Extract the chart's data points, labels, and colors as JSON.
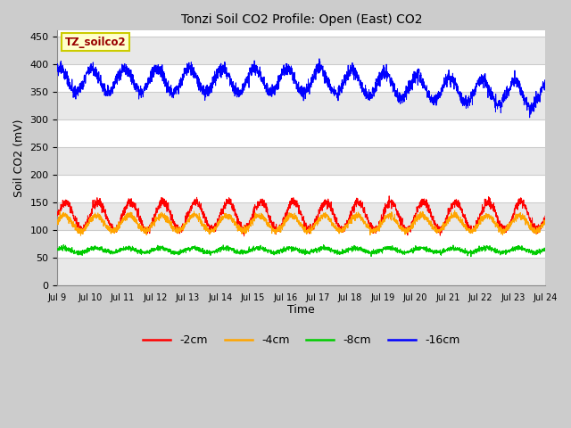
{
  "title": "Tonzi Soil CO2 Profile: Open (East) CO2",
  "ylabel": "Soil CO2 (mV)",
  "xlabel": "Time",
  "annotation_text": "TZ_soilco2",
  "annotation_color": "#990000",
  "annotation_bg": "#ffffcc",
  "annotation_border": "#cccc00",
  "ylim": [
    0,
    460
  ],
  "yticks": [
    0,
    50,
    100,
    150,
    200,
    250,
    300,
    350,
    400,
    450
  ],
  "xtick_labels": [
    "Jul 9",
    "Jul 10",
    "Jul 11",
    "Jul 12",
    "Jul 13",
    "Jul 14",
    "Jul 15",
    "Jul 16",
    "Jul 17",
    "Jul 18",
    "Jul 19",
    "Jul 20",
    "Jul 21",
    "Jul 22",
    "Jul 23",
    "Jul 24"
  ],
  "legend_labels": [
    "-2cm",
    "-4cm",
    "-8cm",
    "-16cm"
  ],
  "legend_colors": [
    "#ff0000",
    "#ffa500",
    "#00cc00",
    "#0000ff"
  ],
  "line_colors": [
    "#ff0000",
    "#ffa500",
    "#00cc00",
    "#0000ff"
  ],
  "fig_bg_color": "#cccccc",
  "plot_bg_color": "#ffffff",
  "band_color_light": "#ffffff",
  "band_color_dark": "#e8e8e8",
  "n_points": 2880,
  "figsize": [
    6.4,
    4.8
  ],
  "dpi": 100
}
